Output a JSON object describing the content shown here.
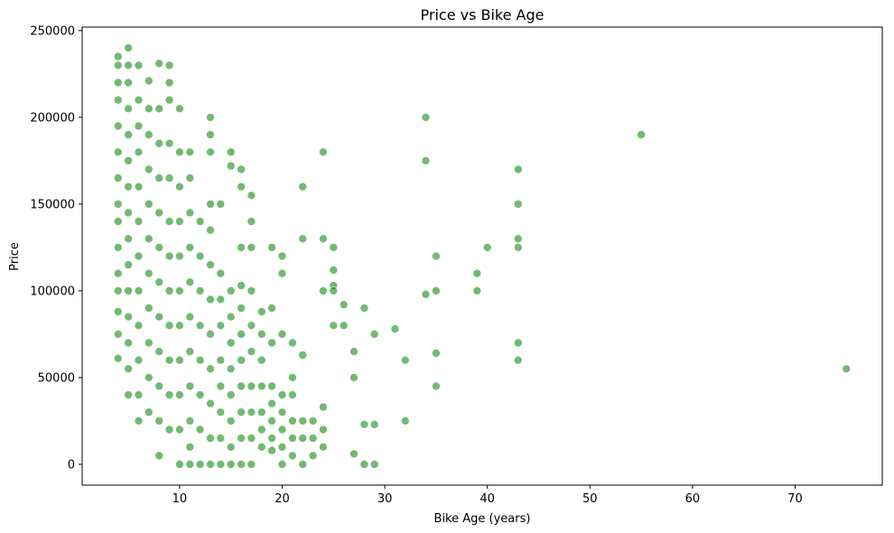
{
  "chart_data": {
    "type": "scatter",
    "title": "Price vs Bike Age",
    "xlabel": "Bike Age (years)",
    "ylabel": "Price",
    "xlim": [
      0.5,
      78.5
    ],
    "ylim": [
      -12000,
      252000
    ],
    "xticks": [
      10,
      20,
      30,
      40,
      50,
      60,
      70
    ],
    "yticks": [
      0,
      50000,
      100000,
      150000,
      200000,
      250000
    ],
    "grid": false,
    "marker_color": "#008000",
    "marker_opacity": 0.55,
    "series": [
      {
        "points": [
          [
            4,
            235000
          ],
          [
            4,
            230000
          ],
          [
            4,
            220000
          ],
          [
            4,
            210000
          ],
          [
            4,
            195000
          ],
          [
            4,
            180000
          ],
          [
            4,
            165000
          ],
          [
            4,
            150000
          ],
          [
            4,
            140000
          ],
          [
            4,
            125000
          ],
          [
            4,
            110000
          ],
          [
            4,
            100000
          ],
          [
            4,
            88000
          ],
          [
            4,
            75000
          ],
          [
            4,
            61000
          ],
          [
            5,
            240000
          ],
          [
            5,
            230000
          ],
          [
            5,
            220000
          ],
          [
            5,
            205000
          ],
          [
            5,
            190000
          ],
          [
            5,
            175000
          ],
          [
            5,
            160000
          ],
          [
            5,
            145000
          ],
          [
            5,
            130000
          ],
          [
            5,
            115000
          ],
          [
            5,
            100000
          ],
          [
            5,
            85000
          ],
          [
            5,
            70000
          ],
          [
            5,
            55000
          ],
          [
            5,
            40000
          ],
          [
            6,
            230000
          ],
          [
            6,
            210000
          ],
          [
            6,
            195000
          ],
          [
            6,
            180000
          ],
          [
            6,
            160000
          ],
          [
            6,
            140000
          ],
          [
            6,
            120000
          ],
          [
            6,
            100000
          ],
          [
            6,
            80000
          ],
          [
            6,
            60000
          ],
          [
            6,
            40000
          ],
          [
            6,
            25000
          ],
          [
            7,
            221000
          ],
          [
            7,
            205000
          ],
          [
            7,
            190000
          ],
          [
            7,
            170000
          ],
          [
            7,
            150000
          ],
          [
            7,
            130000
          ],
          [
            7,
            110000
          ],
          [
            7,
            90000
          ],
          [
            7,
            70000
          ],
          [
            7,
            50000
          ],
          [
            7,
            30000
          ],
          [
            8,
            231000
          ],
          [
            8,
            205000
          ],
          [
            8,
            185000
          ],
          [
            8,
            165000
          ],
          [
            8,
            145000
          ],
          [
            8,
            125000
          ],
          [
            8,
            105000
          ],
          [
            8,
            85000
          ],
          [
            8,
            65000
          ],
          [
            8,
            45000
          ],
          [
            8,
            25000
          ],
          [
            8,
            5000
          ],
          [
            9,
            230000
          ],
          [
            9,
            220000
          ],
          [
            9,
            210000
          ],
          [
            9,
            185000
          ],
          [
            9,
            165000
          ],
          [
            9,
            140000
          ],
          [
            9,
            120000
          ],
          [
            9,
            100000
          ],
          [
            9,
            80000
          ],
          [
            9,
            60000
          ],
          [
            9,
            40000
          ],
          [
            9,
            20000
          ],
          [
            10,
            205000
          ],
          [
            10,
            180000
          ],
          [
            10,
            160000
          ],
          [
            10,
            140000
          ],
          [
            10,
            120000
          ],
          [
            10,
            100000
          ],
          [
            10,
            80000
          ],
          [
            10,
            60000
          ],
          [
            10,
            40000
          ],
          [
            10,
            20000
          ],
          [
            10,
            0
          ],
          [
            11,
            180000
          ],
          [
            11,
            165000
          ],
          [
            11,
            145000
          ],
          [
            11,
            125000
          ],
          [
            11,
            105000
          ],
          [
            11,
            85000
          ],
          [
            11,
            65000
          ],
          [
            11,
            45000
          ],
          [
            11,
            25000
          ],
          [
            11,
            10000
          ],
          [
            11,
            0
          ],
          [
            12,
            140000
          ],
          [
            12,
            120000
          ],
          [
            12,
            100000
          ],
          [
            12,
            80000
          ],
          [
            12,
            60000
          ],
          [
            12,
            40000
          ],
          [
            12,
            20000
          ],
          [
            12,
            0
          ],
          [
            13,
            200000
          ],
          [
            13,
            190000
          ],
          [
            13,
            180000
          ],
          [
            13,
            150000
          ],
          [
            13,
            135000
          ],
          [
            13,
            115000
          ],
          [
            13,
            95000
          ],
          [
            13,
            75000
          ],
          [
            13,
            55000
          ],
          [
            13,
            35000
          ],
          [
            13,
            15000
          ],
          [
            13,
            0
          ],
          [
            14,
            150000
          ],
          [
            14,
            110000
          ],
          [
            14,
            95000
          ],
          [
            14,
            80000
          ],
          [
            14,
            60000
          ],
          [
            14,
            45000
          ],
          [
            14,
            30000
          ],
          [
            14,
            15000
          ],
          [
            14,
            0
          ],
          [
            15,
            180000
          ],
          [
            15,
            172000
          ],
          [
            15,
            100000
          ],
          [
            15,
            85000
          ],
          [
            15,
            70000
          ],
          [
            15,
            55000
          ],
          [
            15,
            40000
          ],
          [
            15,
            25000
          ],
          [
            15,
            10000
          ],
          [
            15,
            0
          ],
          [
            16,
            170000
          ],
          [
            16,
            160000
          ],
          [
            16,
            125000
          ],
          [
            16,
            103000
          ],
          [
            16,
            90000
          ],
          [
            16,
            75000
          ],
          [
            16,
            60000
          ],
          [
            16,
            45000
          ],
          [
            16,
            30000
          ],
          [
            16,
            15000
          ],
          [
            16,
            0
          ],
          [
            17,
            155000
          ],
          [
            17,
            140000
          ],
          [
            17,
            125000
          ],
          [
            17,
            100000
          ],
          [
            17,
            80000
          ],
          [
            17,
            65000
          ],
          [
            17,
            45000
          ],
          [
            17,
            30000
          ],
          [
            17,
            15000
          ],
          [
            17,
            0
          ],
          [
            18,
            88000
          ],
          [
            18,
            75000
          ],
          [
            18,
            60000
          ],
          [
            18,
            45000
          ],
          [
            18,
            30000
          ],
          [
            18,
            20000
          ],
          [
            18,
            10000
          ],
          [
            19,
            125000
          ],
          [
            19,
            90000
          ],
          [
            19,
            70000
          ],
          [
            19,
            45000
          ],
          [
            19,
            35000
          ],
          [
            19,
            25000
          ],
          [
            19,
            15000
          ],
          [
            19,
            8000
          ],
          [
            20,
            120000
          ],
          [
            20,
            110000
          ],
          [
            20,
            75000
          ],
          [
            20,
            40000
          ],
          [
            20,
            30000
          ],
          [
            20,
            20000
          ],
          [
            20,
            10000
          ],
          [
            20,
            0
          ],
          [
            21,
            70000
          ],
          [
            21,
            50000
          ],
          [
            21,
            40000
          ],
          [
            21,
            25000
          ],
          [
            21,
            15000
          ],
          [
            21,
            5000
          ],
          [
            22,
            160000
          ],
          [
            22,
            130000
          ],
          [
            22,
            63000
          ],
          [
            22,
            25000
          ],
          [
            22,
            15000
          ],
          [
            22,
            0
          ],
          [
            23,
            25000
          ],
          [
            23,
            15000
          ],
          [
            23,
            5000
          ],
          [
            24,
            180000
          ],
          [
            24,
            130000
          ],
          [
            24,
            100000
          ],
          [
            24,
            33000
          ],
          [
            24,
            20000
          ],
          [
            24,
            10000
          ],
          [
            25,
            125000
          ],
          [
            25,
            112000
          ],
          [
            25,
            103000
          ],
          [
            25,
            100000
          ],
          [
            25,
            80000
          ],
          [
            26,
            92000
          ],
          [
            26,
            80000
          ],
          [
            27,
            65000
          ],
          [
            27,
            50000
          ],
          [
            27,
            6000
          ],
          [
            28,
            90000
          ],
          [
            28,
            23000
          ],
          [
            28,
            0
          ],
          [
            29,
            75000
          ],
          [
            29,
            23000
          ],
          [
            29,
            0
          ],
          [
            31,
            78000
          ],
          [
            32,
            60000
          ],
          [
            32,
            25000
          ],
          [
            34,
            200000
          ],
          [
            34,
            175000
          ],
          [
            34,
            98000
          ],
          [
            35,
            120000
          ],
          [
            35,
            100000
          ],
          [
            35,
            64000
          ],
          [
            35,
            45000
          ],
          [
            39,
            110000
          ],
          [
            39,
            100000
          ],
          [
            40,
            125000
          ],
          [
            43,
            170000
          ],
          [
            43,
            150000
          ],
          [
            43,
            130000
          ],
          [
            43,
            125000
          ],
          [
            43,
            70000
          ],
          [
            43,
            60000
          ],
          [
            55,
            190000
          ],
          [
            75,
            55000
          ]
        ]
      }
    ]
  }
}
